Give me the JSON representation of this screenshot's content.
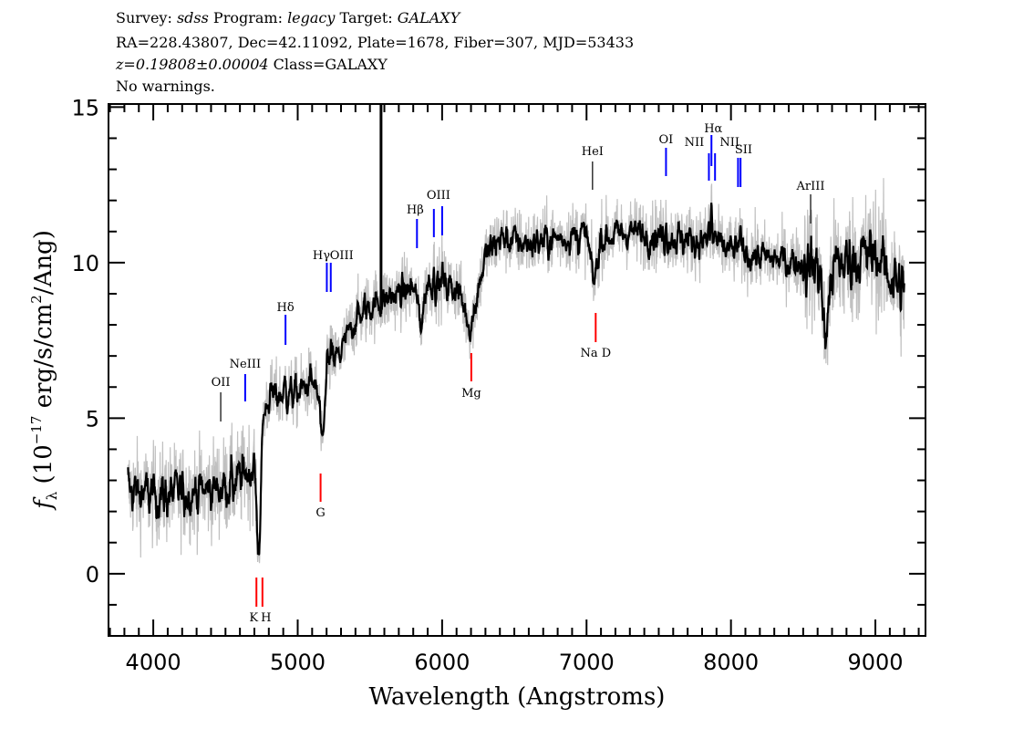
{
  "header": {
    "line1": {
      "survey_label": "Survey:",
      "survey": "sdss",
      "program_label": "Program:",
      "program": "legacy",
      "target_label": "Target:",
      "target": "GALAXY"
    },
    "line2": "RA=228.43807, Dec=42.11092, Plate=1678, Fiber=307, MJD=53433",
    "line3": {
      "redshift": "z=0.19808±0.00004",
      "class": "Class=GALAXY"
    },
    "line4": "No warnings."
  },
  "chart_data": {
    "type": "line",
    "title": "",
    "xlabel": "Wavelength (Angstroms)",
    "ylabel": {
      "symbol": "f",
      "sub": "λ",
      "pre": "(10",
      "exp": "−17",
      "mid": " erg/s/cm",
      "exp2": "2",
      "post": "/Ang)"
    },
    "xlim": [
      3690,
      9347
    ],
    "ylim": [
      -2.0,
      15.1
    ],
    "xticks": [
      4000,
      5000,
      6000,
      7000,
      8000,
      9000
    ],
    "yticks": [
      0,
      5,
      10,
      15
    ],
    "redshift": 0.19808,
    "colors": {
      "raw": "#c0c0c0",
      "smoothed": "#000000",
      "emission": "#0000ff",
      "absorption": "#ff0000",
      "sky": "#000000"
    },
    "series": [
      {
        "role": "raw flux",
        "color": "#c0c0c0"
      },
      {
        "role": "smoothed flux",
        "color": "#000000"
      }
    ],
    "continuum": {
      "wavelength": [
        3820,
        4000,
        4200,
        4400,
        4600,
        4700,
        4730,
        4760,
        4800,
        5000,
        5100,
        5150,
        5170,
        5200,
        5300,
        5400,
        5500,
        5700,
        5800,
        5850,
        5900,
        6000,
        6100,
        6150,
        6200,
        6250,
        6300,
        6400,
        6600,
        6800,
        7000,
        7050,
        7100,
        7300,
        7600,
        7800,
        8000,
        8300,
        8500,
        8620,
        8650,
        8700,
        8900,
        9000,
        9200
      ],
      "flux": [
        2.7,
        2.5,
        2.6,
        2.7,
        3.0,
        3.5,
        0.3,
        5.0,
        5.7,
        5.8,
        6.2,
        5.5,
        3.6,
        6.6,
        7.1,
        8.2,
        8.6,
        9.0,
        9.2,
        8.0,
        9.4,
        9.3,
        9.2,
        8.6,
        7.9,
        9.2,
        10.2,
        10.8,
        10.6,
        10.8,
        10.9,
        9.3,
        10.8,
        11.0,
        10.8,
        10.7,
        10.4,
        10.1,
        10.0,
        9.8,
        7.3,
        9.8,
        10.2,
        10.3,
        9.0
      ]
    },
    "sky_line": {
      "wavelength": 5577,
      "peak_flux": 15.1
    },
    "lines": [
      {
        "name": "OII",
        "label": "OII",
        "rest": 3728.5,
        "kind": "other"
      },
      {
        "name": "NeIII",
        "label": "NeIII",
        "rest": 3869.8,
        "kind": "emission"
      },
      {
        "name": "Hdelta",
        "label": "Hδ",
        "rest": 4102.9,
        "kind": "emission"
      },
      {
        "name": "Hgamma",
        "label": "Hγ",
        "rest": 4341.7,
        "kind": "emission"
      },
      {
        "name": "OIII-4364",
        "label": "OIII",
        "rest": 4364.4,
        "kind": "emission"
      },
      {
        "name": "Hbeta",
        "label": "Hβ",
        "rest": 4862.7,
        "kind": "emission"
      },
      {
        "name": "OIII-4960",
        "label": "",
        "rest": 4960.3,
        "kind": "emission"
      },
      {
        "name": "OIII-5008",
        "label": "OIII",
        "rest": 5008.2,
        "kind": "emission"
      },
      {
        "name": "HeI",
        "label": "HeI",
        "rest": 5877.3,
        "kind": "other"
      },
      {
        "name": "OI",
        "label": "OI",
        "rest": 6302.0,
        "kind": "emission"
      },
      {
        "name": "NII-6550",
        "label": "NII",
        "rest": 6549.9,
        "kind": "emission"
      },
      {
        "name": "Halpha",
        "label": "Hα",
        "rest": 6564.6,
        "kind": "emission"
      },
      {
        "name": "NII-6585",
        "label": "NII",
        "rest": 6585.3,
        "kind": "emission"
      },
      {
        "name": "SII-6718",
        "label": "SII",
        "rest": 6718.3,
        "kind": "emission"
      },
      {
        "name": "SII-6733",
        "label": "",
        "rest": 6732.7,
        "kind": "emission"
      },
      {
        "name": "ArIII",
        "label": "ArIII",
        "rest": 7137.8,
        "kind": "other"
      },
      {
        "name": "K",
        "label": "K",
        "rest": 3934.8,
        "kind": "absorption"
      },
      {
        "name": "H",
        "label": "H",
        "rest": 3969.6,
        "kind": "absorption"
      },
      {
        "name": "G",
        "label": "G",
        "rest": 4305.6,
        "kind": "absorption"
      },
      {
        "name": "Mg",
        "label": "Mg",
        "rest": 5176.7,
        "kind": "absorption"
      },
      {
        "name": "NaD",
        "label": "Na D",
        "rest": 5895.6,
        "kind": "absorption"
      }
    ]
  }
}
